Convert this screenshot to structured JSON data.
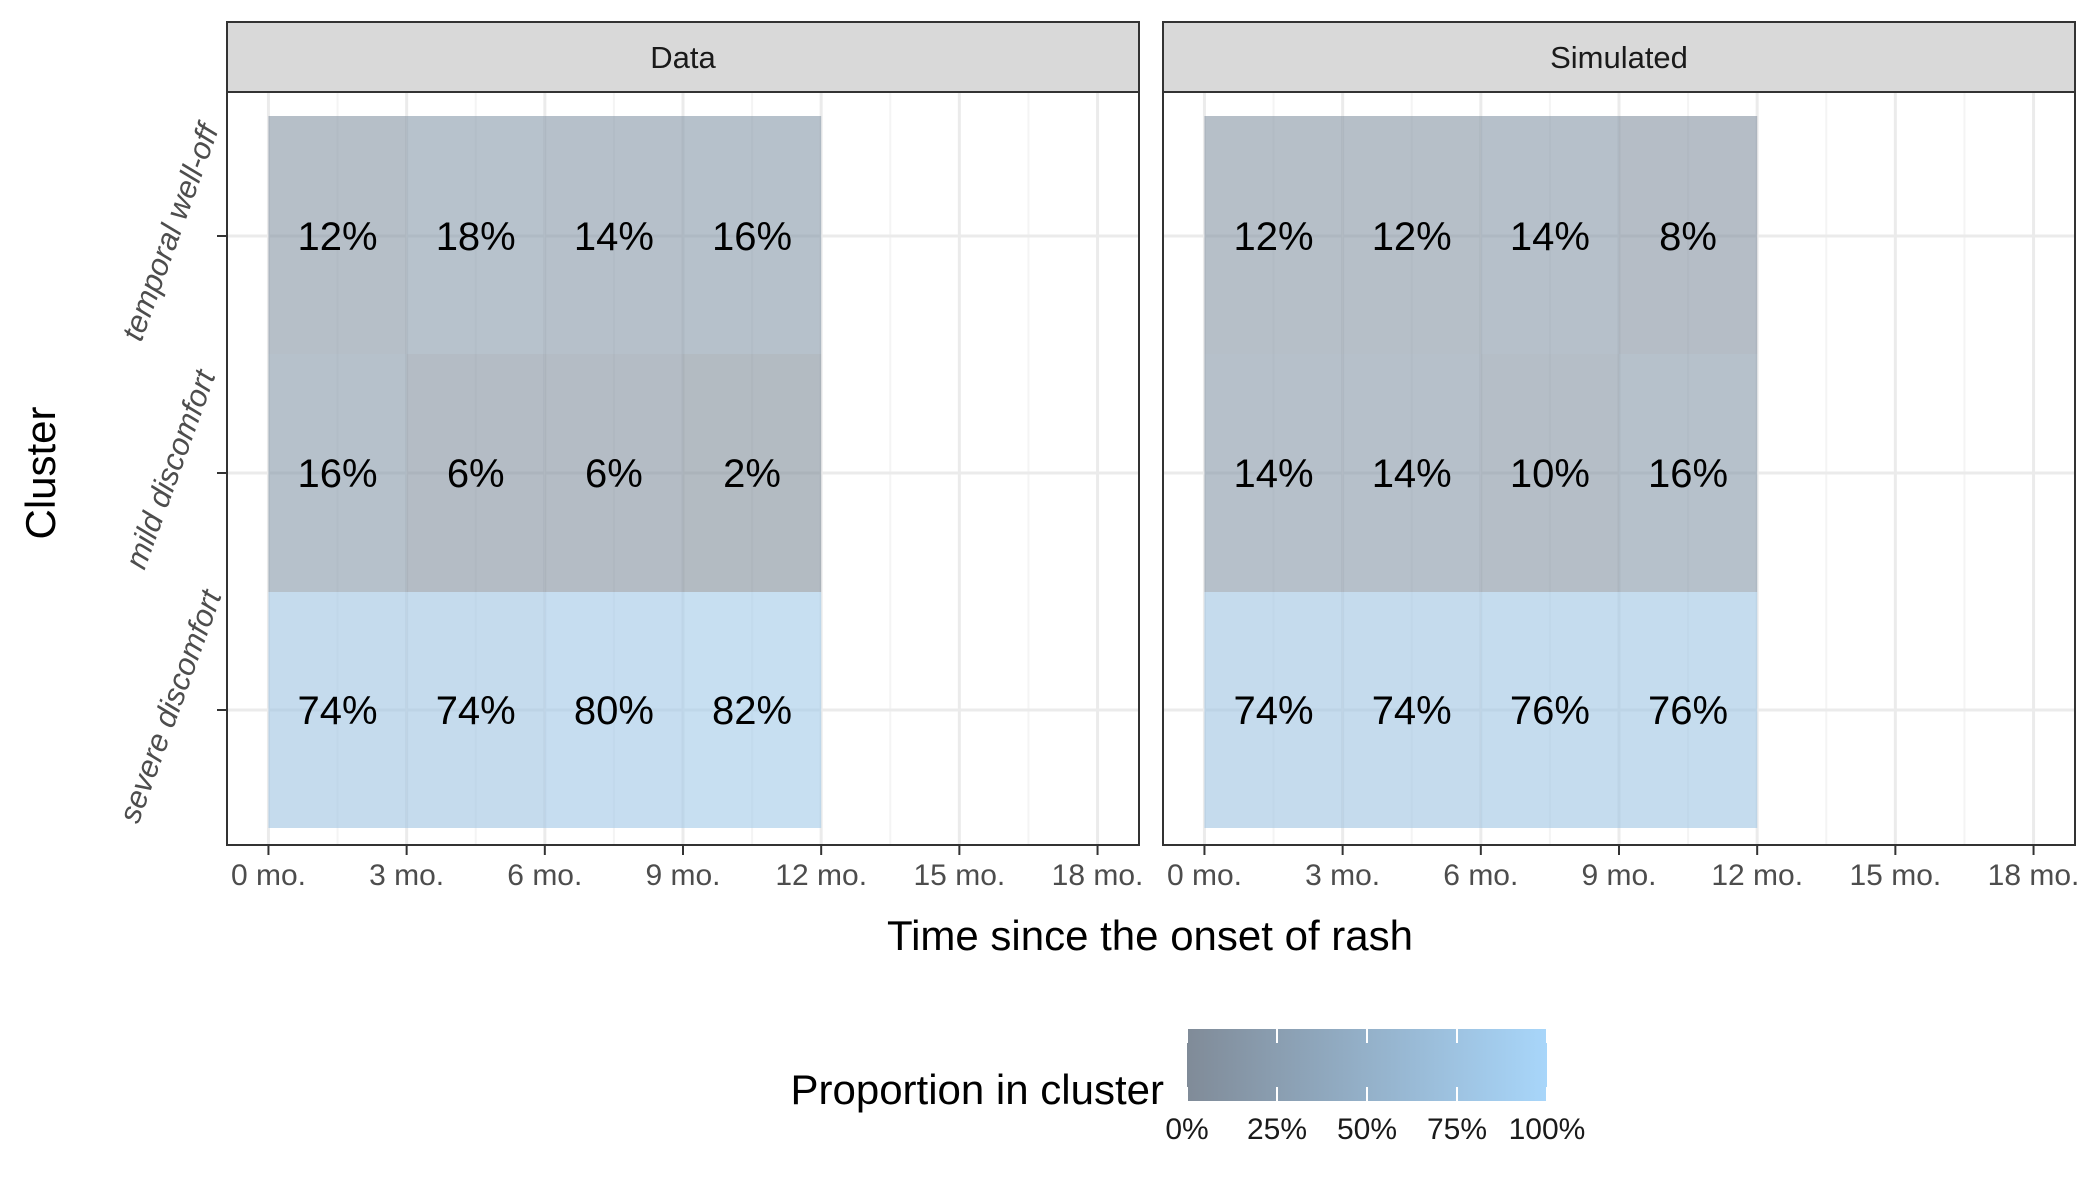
{
  "chart_data": {
    "type": "heatmap",
    "xlabel": "Time since the onset of rash",
    "ylabel": "Cluster",
    "x_ticks": [
      "0 mo.",
      "3 mo.",
      "6 mo.",
      "9 mo.",
      "12 mo.",
      "15 mo.",
      "18 mo."
    ],
    "x_tick_values": [
      0,
      3,
      6,
      9,
      12,
      15,
      18
    ],
    "xlim": [
      -0.9,
      18.9
    ],
    "x_bin_starts": [
      0,
      3,
      6,
      9
    ],
    "x_bin_width": 3,
    "clusters": [
      "temporal well-off",
      "mild discomfort",
      "severe discomfort"
    ],
    "facets": [
      {
        "name": "Data",
        "values": [
          [
            12,
            18,
            14,
            16
          ],
          [
            16,
            6,
            6,
            2
          ],
          [
            74,
            74,
            80,
            82
          ]
        ],
        "labels": [
          [
            "12%",
            "18%",
            "14%",
            "16%"
          ],
          [
            "16%",
            "6%",
            "6%",
            "2%"
          ],
          [
            "74%",
            "74%",
            "80%",
            "82%"
          ]
        ]
      },
      {
        "name": "Simulated",
        "values": [
          [
            12,
            12,
            14,
            8
          ],
          [
            14,
            14,
            10,
            16
          ],
          [
            74,
            74,
            76,
            76
          ]
        ],
        "labels": [
          [
            "12%",
            "12%",
            "14%",
            "8%"
          ],
          [
            "14%",
            "14%",
            "10%",
            "16%"
          ],
          [
            "74%",
            "74%",
            "76%",
            "76%"
          ]
        ]
      }
    ],
    "legend": {
      "title": "Proportion in cluster",
      "ticks": [
        "0%",
        "25%",
        "50%",
        "75%",
        "100%"
      ],
      "tick_values": [
        0,
        25,
        50,
        75,
        100
      ],
      "color_low": "#808b98",
      "color_high": "#a8d6fa",
      "placement": "bottom"
    },
    "grid": true,
    "colors": {
      "strip_fill": "#d9d9d9",
      "border": "#333333",
      "grid_major": "#ebebeb",
      "grid_minor": "#f4f4f4"
    }
  }
}
